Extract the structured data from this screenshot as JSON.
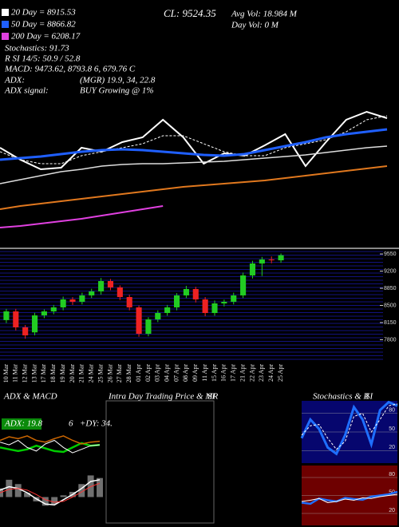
{
  "chart_data": [
    {
      "type": "line",
      "title": "CL: 9524.35",
      "annotations": [
        {
          "text": "20 Day = 8915.53",
          "color": "#ffffff"
        },
        {
          "text": "50 Day = 8866.82",
          "color": "#1f5fff"
        },
        {
          "text": "200 Day = 6208.17",
          "color": "#e040e0"
        },
        "Stochastics: 91.73",
        "R        SI 14/5: 50.9 / 52.8",
        "MACD: 9473.62, 8793.8        6, 679.76  C",
        "ADX:",
        "(MGR) 19.9,  34,  22.8",
        "ADX  signal:",
        "BUY Growing @ 1%",
        "Avg Vol: 18.984   M",
        "Day Vol: 0   M"
      ],
      "ylim": [
        4000,
        11000
      ],
      "series": [
        {
          "color": "#ffffff",
          "width": 2,
          "values": [
            6875,
            6500,
            6200,
            6250,
            6875,
            6750,
            7050,
            7200,
            7750,
            7200,
            6375,
            6700,
            6625,
            6950,
            7300,
            6300,
            7050,
            7750,
            8000,
            7800
          ]
        },
        {
          "color": "#ffffff",
          "width": 1,
          "dashed": true,
          "values": [
            6750,
            6500,
            6375,
            6375,
            6625,
            6750,
            6875,
            7000,
            7250,
            7250,
            7000,
            6750,
            6625,
            6625,
            6875,
            7000,
            7125,
            7375,
            7750,
            7875
          ]
        },
        {
          "color": "#1f5fff",
          "width": 3,
          "values": [
            6500,
            6550,
            6600,
            6675,
            6750,
            6800,
            6825,
            6800,
            6750,
            6700,
            6650,
            6625,
            6675,
            6800,
            6925,
            7050,
            7200,
            7300,
            7375,
            7450
          ]
        },
        {
          "color": "#dddddd",
          "width": 1.5,
          "values": [
            5750,
            5875,
            6000,
            6125,
            6200,
            6300,
            6350,
            6375,
            6375,
            6400,
            6425,
            6450,
            6500,
            6550,
            6600,
            6650,
            6725,
            6800,
            6875,
            6925
          ]
        },
        {
          "color": "#e0781e",
          "width": 2,
          "values": [
            4950,
            5050,
            5125,
            5200,
            5275,
            5350,
            5425,
            5500,
            5575,
            5650,
            5700,
            5750,
            5800,
            5850,
            5925,
            6000,
            6075,
            6150,
            6225,
            6300
          ]
        },
        {
          "color": "#e040e0",
          "width": 2,
          "values": [
            4375,
            4425,
            4500,
            4575,
            4650,
            4750,
            4850,
            4950,
            5050,
            null,
            null,
            null,
            null,
            null,
            null,
            null,
            null,
            null,
            null,
            null
          ]
        }
      ]
    },
    {
      "type": "candlestick",
      "categories": [
        "10 Mar",
        "11 Mar",
        "12 Mar",
        "13 Mar",
        "17 Mar",
        "18 Mar",
        "19 Mar",
        "20 Mar",
        "21 Mar",
        "24 Mar",
        "25 Mar",
        "26 Mar",
        "27 Mar",
        "28 Mar",
        "01 Apr",
        "02 Apr",
        "03 Apr",
        "04 Apr",
        "07 Apr",
        "08 Apr",
        "09 Apr",
        "11 Apr",
        "15 Apr",
        "16 Apr",
        "17 Apr",
        "21 Apr",
        "22 Apr",
        "23 Apr",
        "24 Apr",
        "25 Apr"
      ],
      "open": [
        8200,
        8378,
        8052,
        7950,
        8297,
        8378,
        8460,
        8623,
        8574,
        8704,
        8786,
        8997,
        8867,
        8671,
        8460,
        7922,
        8215,
        8345,
        8460,
        8704,
        8834,
        8623,
        8345,
        8541,
        8574,
        8704,
        9112,
        9356,
        9438,
        9421
      ],
      "high": [
        8430,
        8430,
        8100,
        8350,
        8420,
        8510,
        8680,
        8670,
        8760,
        8840,
        9060,
        9040,
        8910,
        8720,
        8500,
        8260,
        8400,
        8510,
        8750,
        8900,
        8880,
        8670,
        8600,
        8620,
        8760,
        9170,
        9410,
        9490,
        9500,
        9560
      ],
      "low": [
        8140,
        7990,
        7820,
        7890,
        8240,
        8320,
        8400,
        8510,
        8520,
        8650,
        8720,
        8810,
        8610,
        8400,
        7860,
        7870,
        8160,
        8290,
        8400,
        8650,
        8560,
        8280,
        8290,
        8480,
        8520,
        8650,
        9050,
        9100,
        9360,
        9370
      ],
      "close": [
        8378,
        8052,
        7889,
        8297,
        8378,
        8460,
        8623,
        8574,
        8704,
        8786,
        8997,
        8867,
        8671,
        8460,
        7922,
        8215,
        8345,
        8460,
        8704,
        8834,
        8623,
        8345,
        8541,
        8574,
        8704,
        9112,
        9356,
        9438,
        9421,
        9524
      ],
      "up_color": "#22cc22",
      "down_color": "#ee2222",
      "ylim": [
        7400,
        9600
      ],
      "yticks": [
        7800,
        8150,
        8500,
        8850,
        9200,
        9550
      ]
    },
    {
      "type": "line",
      "title": "ADX  & MACD",
      "annotations": [
        "ADX: 19.8",
        "6",
        "+DY: 34."
      ],
      "ylim": [
        0,
        60
      ],
      "series": [
        {
          "color": "#00cc00",
          "width": 2.5,
          "values": [
            22,
            20,
            18,
            20,
            24,
            21,
            18,
            17,
            22,
            27,
            24,
            25
          ]
        },
        {
          "color": "#cc6600",
          "width": 1.5,
          "values": [
            30,
            34,
            32,
            35,
            30,
            28,
            32,
            35,
            30,
            26,
            28,
            29
          ]
        },
        {
          "color": "#ffffff",
          "width": 1,
          "values": [
            28,
            25,
            30,
            22,
            18,
            26,
            30,
            22,
            16,
            20,
            24,
            25
          ]
        }
      ]
    },
    {
      "type": "line",
      "ylim": [
        -3,
        3
      ],
      "series": [
        {
          "kind": "bar",
          "color": "#cccccc",
          "values": [
            1,
            2,
            1.5,
            0.5,
            -0.5,
            -1,
            -0.8,
            0.2,
            0.6,
            1.5,
            2.5,
            2.2
          ]
        },
        {
          "color": "#ffffff",
          "width": 1.5,
          "values": [
            0.8,
            1.2,
            1,
            0.5,
            -0.2,
            -0.8,
            -0.9,
            -0.3,
            0.3,
            1,
            1.8,
            2
          ]
        },
        {
          "color": "#ff3333",
          "width": 1,
          "values": [
            0.5,
            0.9,
            1,
            0.8,
            0.3,
            -0.3,
            -0.6,
            -0.5,
            0,
            0.6,
            1.2,
            1.6
          ]
        }
      ]
    },
    {
      "type": "line",
      "title": "Intra Day Trading Price & MR",
      "subtitle": "SI",
      "border": "#666666",
      "series": []
    },
    {
      "type": "line",
      "title": "Stochastics & R",
      "subtitle": "SI",
      "background": "#06066e",
      "grid": true,
      "ylim": [
        0,
        100
      ],
      "yticks": [
        20,
        50,
        80
      ],
      "series": [
        {
          "color": "#1f6fff",
          "width": 3,
          "values": [
            40,
            70,
            55,
            25,
            15,
            45,
            90,
            70,
            30,
            85,
            98,
            92
          ]
        },
        {
          "color": "#ffffff",
          "width": 1,
          "dashed": true,
          "values": [
            45,
            60,
            62,
            40,
            22,
            35,
            75,
            80,
            50,
            70,
            92,
            95
          ]
        }
      ]
    },
    {
      "type": "line",
      "background": "#6e0000",
      "grid": true,
      "ylim": [
        0,
        100
      ],
      "yticks": [
        20,
        50,
        80
      ],
      "series": [
        {
          "color": "#1f6fff",
          "width": 2.5,
          "values": [
            38,
            36,
            45,
            42,
            40,
            46,
            44,
            43,
            48,
            50,
            52,
            56
          ]
        },
        {
          "color": "#ffffff",
          "width": 1,
          "values": [
            40,
            42,
            45,
            38,
            40,
            44,
            42,
            46,
            45,
            48,
            50,
            52
          ]
        }
      ]
    }
  ]
}
